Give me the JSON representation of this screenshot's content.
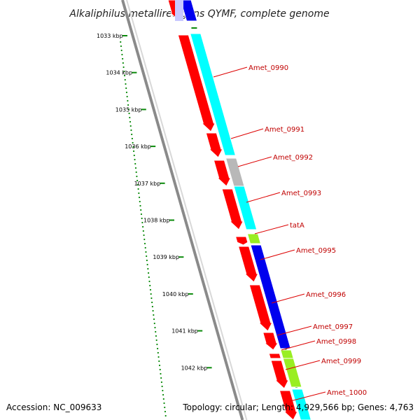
{
  "title": "Alkaliphilus metalliredigens QYMF, complete genome",
  "footer": {
    "accession": "Accession: NC_009633",
    "info": "Topology: circular; Length: 4,929,566 bp; Genes: 4,763"
  },
  "colors": {
    "forward_gene": "#ff0000",
    "cyan_gene": "#00ffff",
    "blue_gene": "#0000ee",
    "grey_gene": "#b8b8b8",
    "green_gene": "#99ee22",
    "label": "#c00000",
    "tick": "#0a8a0a",
    "backbone": "#8a8a8a"
  },
  "kbp_ticks": [
    "1033 kbp",
    "1034 kbp",
    "1035 kbp",
    "1036 kbp",
    "1037 kbp",
    "1038 kbp",
    "1039 kbp",
    "1040 kbp",
    "1041 kbp",
    "1042 kbp"
  ],
  "gene_labels": [
    "Amet_0990",
    "Amet_0991",
    "Amet_0992",
    "Amet_0993",
    "tatA",
    "Amet_0995",
    "Amet_0996",
    "Amet_0997",
    "Amet_0998",
    "Amet_0999",
    "Amet_1000"
  ]
}
